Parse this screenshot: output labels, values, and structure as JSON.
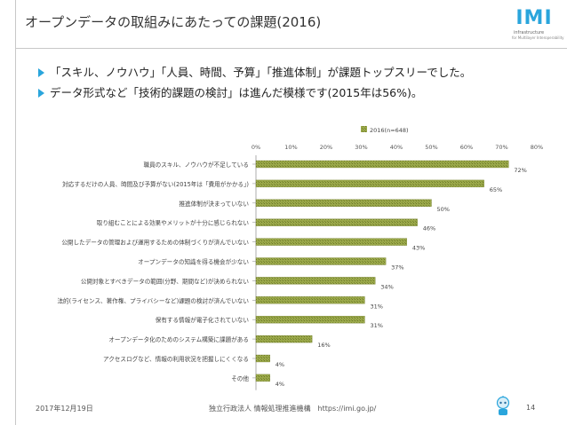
{
  "slide": {
    "title": "オープンデータの取組みにあたっての課題(2016)",
    "bullets": [
      "「スキル、ノウハウ」「人員、時間、予算」「推進体制」が課題トップスリーでした。",
      "データ形式など「技術的課題の検討」は進んだ模様です(2015年は56%)。"
    ],
    "logo": {
      "word": "IMI",
      "sub1": "infrastructure",
      "sub2": "for Multilayer Interoperability"
    },
    "footer": {
      "date": "2017年12月19日",
      "org": "独立行政法人 情報処理推進機構　https://imi.go.jp/",
      "page": "14"
    },
    "accent_color": "#2aa5dc"
  },
  "chart_data": {
    "type": "bar",
    "orientation": "horizontal",
    "legend": "2016(n=648)",
    "legend_position": "top-center",
    "xlim": [
      0,
      80
    ],
    "x_ticks": [
      "0%",
      "10%",
      "20%",
      "30%",
      "40%",
      "50%",
      "60%",
      "70%",
      "80%"
    ],
    "grid": false,
    "bar_color": "#8a9a3c",
    "categories": [
      "職員のスキル、ノウハウが不足している",
      "対応するだけの人員、時間及び予算がない(2015年は「費用がかかる」)",
      "推進体制が決まっていない",
      "取り組むことによる効果やメリットが十分に感じられない",
      "公開したデータの管理および運用するための体制づくりが済んでいない",
      "オープンデータの知識を得る機会が少ない",
      "公開対象とすべきデータの範囲(分野、期間など)が決められない",
      "法的(ライセンス、著作権、プライバシーなど)課題の検討が済んでいない",
      "保有する情報が電子化されていない",
      "オープンデータ化のためのシステム構築に課題がある",
      "アクセスログなど、情報の利用状況を把握しにくくなる",
      "その他"
    ],
    "values": [
      72,
      65,
      50,
      46,
      43,
      37,
      34,
      31,
      31,
      16,
      4,
      4
    ],
    "value_labels": [
      "72%",
      "65%",
      "50%",
      "46%",
      "43%",
      "37%",
      "34%",
      "31%",
      "31%",
      "16%",
      "4%",
      "4%"
    ]
  }
}
